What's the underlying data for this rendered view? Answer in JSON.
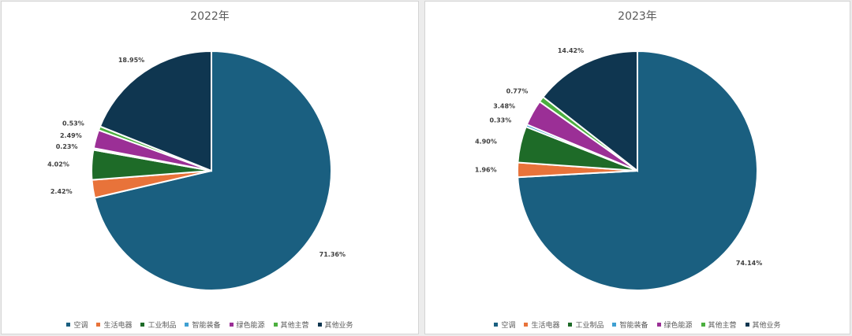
{
  "chart_data": [
    {
      "type": "pie",
      "title": "2022年",
      "categories": [
        "空调",
        "生活电器",
        "工业制品",
        "智能装备",
        "绿色能源",
        "其他主营",
        "其他业务"
      ],
      "values": [
        71.36,
        2.42,
        4.02,
        0.23,
        2.49,
        0.53,
        18.95
      ],
      "labels": [
        "71.36%",
        "2.42%",
        "4.02%",
        "0.23%",
        "2.49%",
        "0.53%",
        "18.95%"
      ],
      "legend_position": "bottom"
    },
    {
      "type": "pie",
      "title": "2023年",
      "categories": [
        "空调",
        "生活电器",
        "工业制品",
        "智能装备",
        "绿色能源",
        "其他主营",
        "其他业务"
      ],
      "values": [
        74.14,
        1.96,
        4.9,
        0.33,
        3.48,
        0.77,
        14.42
      ],
      "labels": [
        "74.14%",
        "1.96%",
        "4.90%",
        "0.33%",
        "3.48%",
        "0.77%",
        "14.42%"
      ],
      "legend_position": "bottom"
    }
  ],
  "colors": [
    "#1a5f80",
    "#e8733a",
    "#1e6b28",
    "#3fa0d2",
    "#9b2f96",
    "#4caf3f",
    "#0f3650"
  ]
}
